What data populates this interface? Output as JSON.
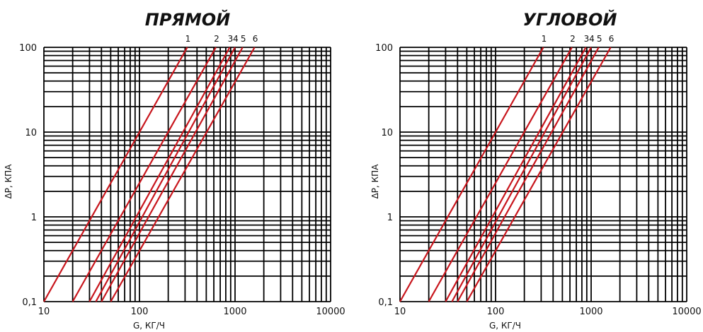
{
  "chart_data": [
    {
      "type": "line",
      "title": "ПРЯМОЙ",
      "xlabel": "G, КГ/Ч",
      "ylabel": "ΔP, КПА",
      "xscale": "log",
      "yscale": "log",
      "xlim": [
        10,
        10000
      ],
      "ylim": [
        0.1,
        100
      ],
      "x_tick_labels": [
        "10",
        "100",
        "1000",
        "10000"
      ],
      "y_tick_labels": [
        "0,1",
        "1",
        "10",
        "100"
      ],
      "grid": true,
      "series": [
        {
          "name": "1",
          "points": [
            [
              10,
              0.1
            ],
            [
              316,
              100
            ]
          ]
        },
        {
          "name": "2",
          "points": [
            [
              20,
              0.1
            ],
            [
              630,
              100
            ]
          ]
        },
        {
          "name": "3",
          "points": [
            [
              30,
              0.1
            ],
            [
              880,
              100
            ]
          ]
        },
        {
          "name": "4",
          "points": [
            [
              35,
              0.1
            ],
            [
              1000,
              100
            ]
          ]
        },
        {
          "name": "5",
          "points": [
            [
              40,
              0.1
            ],
            [
              1200,
              100
            ]
          ]
        },
        {
          "name": "6",
          "points": [
            [
              50,
              0.1
            ],
            [
              1600,
              100
            ]
          ]
        }
      ]
    },
    {
      "type": "line",
      "title": "УГЛОВОЙ",
      "xlabel": "G, КГ/Ч",
      "ylabel": "ΔP, КПА",
      "xscale": "log",
      "yscale": "log",
      "xlim": [
        10,
        10000
      ],
      "ylim": [
        0.1,
        100
      ],
      "x_tick_labels": [
        "10",
        "100",
        "1000",
        "10000"
      ],
      "y_tick_labels": [
        "0,1",
        "1",
        "10",
        "100"
      ],
      "grid": true,
      "series": [
        {
          "name": "1",
          "points": [
            [
              10,
              0.1
            ],
            [
              316,
              100
            ]
          ]
        },
        {
          "name": "2",
          "points": [
            [
              20,
              0.1
            ],
            [
              630,
              100
            ]
          ]
        },
        {
          "name": "3",
          "points": [
            [
              30,
              0.1
            ],
            [
              880,
              100
            ]
          ]
        },
        {
          "name": "4",
          "points": [
            [
              35,
              0.1
            ],
            [
              1000,
              100
            ]
          ]
        },
        {
          "name": "5",
          "points": [
            [
              40,
              0.1
            ],
            [
              1200,
              100
            ]
          ]
        },
        {
          "name": "6",
          "points": [
            [
              50,
              0.1
            ],
            [
              1600,
              100
            ]
          ]
        }
      ]
    }
  ],
  "colors": {
    "curve": "#c8161d",
    "grid": "#000000",
    "background": "#ffffff"
  }
}
